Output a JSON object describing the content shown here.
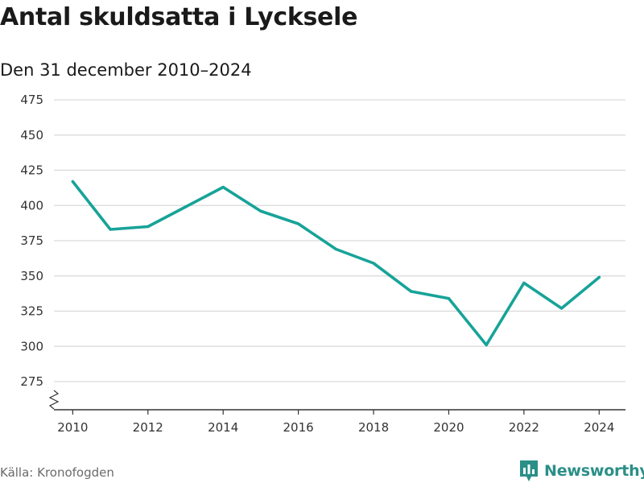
{
  "title": "Antal skuldsatta i Lycksele",
  "subtitle": "Den 31 december 2010–2024",
  "source": "Källa: Kronofogden",
  "brand": "Newsworthy",
  "colors": {
    "line": "#17a398",
    "grid": "#d9d9d9",
    "axis": "#333333",
    "brand": "#2a8f87"
  },
  "chart_data": {
    "type": "line",
    "title": "Antal skuldsatta i Lycksele",
    "subtitle": "Den 31 december 2010–2024",
    "x": [
      2010,
      2011,
      2012,
      2013,
      2014,
      2015,
      2016,
      2017,
      2018,
      2019,
      2020,
      2021,
      2022,
      2023,
      2024
    ],
    "series": [
      {
        "values": [
          417,
          383,
          385,
          399,
          413,
          396,
          387,
          369,
          359,
          339,
          334,
          301,
          345,
          327,
          349
        ]
      }
    ],
    "xticks": [
      "2010",
      "2012",
      "2014",
      "2016",
      "2018",
      "2020",
      "2022",
      "2024"
    ],
    "yticks": [
      "275",
      "300",
      "325",
      "350",
      "375",
      "400",
      "425",
      "450",
      "475"
    ],
    "xlim": [
      2009.5,
      2024.7
    ],
    "ylim": [
      255,
      475
    ],
    "y_axis_break": true,
    "grid": true,
    "xlabel": "",
    "ylabel": ""
  }
}
